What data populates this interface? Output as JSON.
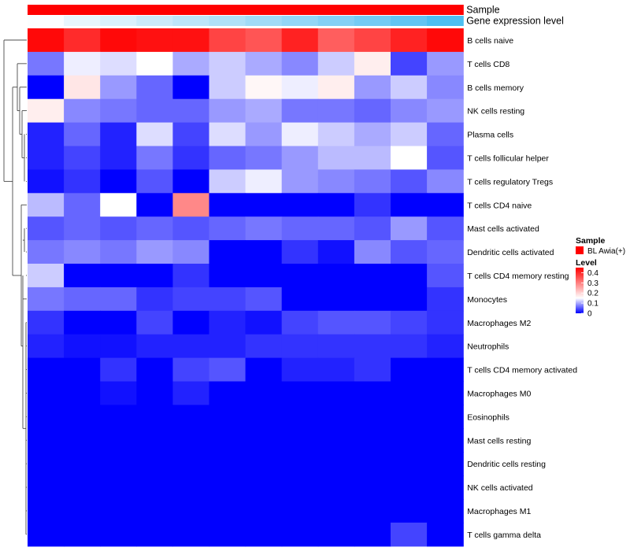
{
  "chart_data": {
    "type": "heatmap",
    "columns": 12,
    "annotations": [
      {
        "name": "Sample",
        "colors": [
          "#ff0000",
          "#ff0000",
          "#ff0000",
          "#ff0000",
          "#ff0000",
          "#ff0000",
          "#ff0000",
          "#ff0000",
          "#ff0000",
          "#ff0000",
          "#ff0000",
          "#ff0000"
        ]
      },
      {
        "name": "Gene expression level",
        "colors": [
          "#fbfeff",
          "#e8f6fd",
          "#daf1fc",
          "#cbebfa",
          "#bde6f9",
          "#b0e1f8",
          "#a1dbf7",
          "#93d6f6",
          "#84d0f5",
          "#74cbf4",
          "#62c5f3",
          "#4dbff1"
        ]
      }
    ],
    "rows": [
      {
        "label": "B cells naive",
        "values": [
          0.44,
          0.4,
          0.44,
          0.43,
          0.43,
          0.37,
          0.35,
          0.41,
          0.34,
          0.37,
          0.41,
          0.44
        ]
      },
      {
        "label": "T cells CD8",
        "values": [
          0.07,
          0.14,
          0.13,
          0.15,
          0.1,
          0.12,
          0.1,
          0.08,
          0.12,
          0.17,
          0.04,
          0.09
        ]
      },
      {
        "label": "B cells memory",
        "values": [
          0.0,
          0.18,
          0.09,
          0.06,
          0.0,
          0.12,
          0.16,
          0.14,
          0.17,
          0.09,
          0.12,
          0.08
        ]
      },
      {
        "label": "NK cells resting",
        "values": [
          0.17,
          0.08,
          0.07,
          0.06,
          0.06,
          0.09,
          0.1,
          0.07,
          0.07,
          0.06,
          0.08,
          0.09
        ]
      },
      {
        "label": "Plasma cells",
        "values": [
          0.02,
          0.06,
          0.02,
          0.13,
          0.04,
          0.13,
          0.09,
          0.14,
          0.12,
          0.1,
          0.12,
          0.06
        ]
      },
      {
        "label": "T cells follicular helper",
        "values": [
          0.02,
          0.04,
          0.02,
          0.07,
          0.03,
          0.06,
          0.07,
          0.09,
          0.11,
          0.11,
          0.15,
          0.05
        ]
      },
      {
        "label": "T cells regulatory  Tregs",
        "values": [
          0.01,
          0.03,
          0.0,
          0.05,
          0.0,
          0.12,
          0.14,
          0.09,
          0.08,
          0.07,
          0.05,
          0.08
        ]
      },
      {
        "label": "T cells CD4 naive",
        "values": [
          0.11,
          0.06,
          0.15,
          0.0,
          0.29,
          0.0,
          0.0,
          0.0,
          0.0,
          0.03,
          0.0,
          0.0
        ]
      },
      {
        "label": "Mast cells activated",
        "values": [
          0.05,
          0.06,
          0.05,
          0.06,
          0.05,
          0.06,
          0.07,
          0.06,
          0.06,
          0.05,
          0.09,
          0.05
        ]
      },
      {
        "label": "Dendritic cells activated",
        "values": [
          0.07,
          0.08,
          0.07,
          0.09,
          0.08,
          0.0,
          0.0,
          0.03,
          0.01,
          0.08,
          0.05,
          0.06
        ]
      },
      {
        "label": "T cells CD4 memory resting",
        "values": [
          0.12,
          0.0,
          0.0,
          0.0,
          0.03,
          0.0,
          0.0,
          0.0,
          0.0,
          0.0,
          0.0,
          0.05
        ]
      },
      {
        "label": "Monocytes",
        "values": [
          0.07,
          0.06,
          0.06,
          0.03,
          0.04,
          0.04,
          0.05,
          0.0,
          0.0,
          0.0,
          0.0,
          0.03
        ]
      },
      {
        "label": "Macrophages M2",
        "values": [
          0.03,
          0.0,
          0.0,
          0.04,
          0.0,
          0.02,
          0.01,
          0.04,
          0.05,
          0.05,
          0.04,
          0.03
        ]
      },
      {
        "label": "Neutrophils",
        "values": [
          0.02,
          0.01,
          0.01,
          0.02,
          0.02,
          0.02,
          0.03,
          0.03,
          0.03,
          0.03,
          0.03,
          0.02
        ]
      },
      {
        "label": "T cells CD4 memory activated",
        "values": [
          0.0,
          0.0,
          0.03,
          0.0,
          0.04,
          0.05,
          0.0,
          0.02,
          0.02,
          0.03,
          0.0,
          0.0
        ]
      },
      {
        "label": "Macrophages M0",
        "values": [
          0.0,
          0.0,
          0.01,
          0.0,
          0.02,
          0.0,
          0.0,
          0.0,
          0.0,
          0.0,
          0.0,
          0.0
        ]
      },
      {
        "label": "Eosinophils",
        "values": [
          0.0,
          0.0,
          0.0,
          0.0,
          0.0,
          0.0,
          0.0,
          0.0,
          0.0,
          0.0,
          0.0,
          0.0
        ]
      },
      {
        "label": "Mast cells resting",
        "values": [
          0.0,
          0.0,
          0.0,
          0.0,
          0.0,
          0.0,
          0.0,
          0.0,
          0.0,
          0.0,
          0.0,
          0.0
        ]
      },
      {
        "label": "Dendritic cells resting",
        "values": [
          0.0,
          0.0,
          0.0,
          0.0,
          0.0,
          0.0,
          0.0,
          0.0,
          0.0,
          0.0,
          0.0,
          0.0
        ]
      },
      {
        "label": "NK cells activated",
        "values": [
          0.0,
          0.0,
          0.0,
          0.0,
          0.0,
          0.0,
          0.0,
          0.0,
          0.0,
          0.0,
          0.0,
          0.0
        ]
      },
      {
        "label": "Macrophages M1",
        "values": [
          0.0,
          0.0,
          0.0,
          0.0,
          0.0,
          0.0,
          0.0,
          0.0,
          0.0,
          0.0,
          0.0,
          0.0
        ]
      },
      {
        "label": "T cells gamma delta",
        "values": [
          0.0,
          0.0,
          0.0,
          0.0,
          0.0,
          0.0,
          0.0,
          0.0,
          0.0,
          0.0,
          0.04,
          0.0
        ]
      }
    ],
    "color_scale": {
      "domain": [
        0,
        0.15,
        0.45
      ],
      "colors": [
        "#0000ff",
        "#ffffff",
        "#ff0000"
      ]
    },
    "legend": {
      "sample_title": "Sample",
      "sample_entry": "BL Awia(+)",
      "sample_color": "#ff0000",
      "level_title": "Level",
      "level_ticks": [
        0.4,
        0.3,
        0.2,
        0.1,
        0
      ],
      "level_tick_labels": [
        "0.4",
        "0.3",
        "0.2",
        "0.1",
        "0"
      ],
      "level_range": [
        0,
        0.45
      ]
    }
  }
}
